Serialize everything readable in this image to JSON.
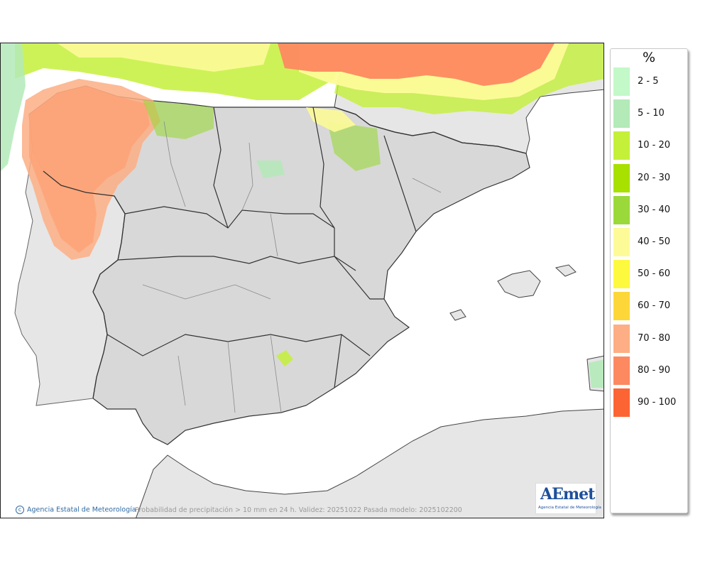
{
  "legend": {
    "title": "%",
    "bins": [
      {
        "label": "2 - 5",
        "color": "#c3f8c9"
      },
      {
        "label": "5 - 10",
        "color": "#b3eab8"
      },
      {
        "label": "10 - 20",
        "color": "#c4f03a"
      },
      {
        "label": "20 - 30",
        "color": "#a8e000"
      },
      {
        "label": "30 - 40",
        "color": "#9bd93a"
      },
      {
        "label": "40 - 50",
        "color": "#fdfb98"
      },
      {
        "label": "50 - 60",
        "color": "#fdf93f"
      },
      {
        "label": "60 - 70",
        "color": "#fdd73a"
      },
      {
        "label": "70 - 80",
        "color": "#fdae84"
      },
      {
        "label": "80 - 90",
        "color": "#fd8960"
      },
      {
        "label": "90 - 100",
        "color": "#fd6433"
      }
    ]
  },
  "footer": {
    "credit": "Agencia Estatal de Meteorología",
    "caption": "Probabilidad de precipitación > 10 mm en 24 h. Validez: 20251022 Pasada modelo: 2025102200"
  },
  "logo": {
    "word": "AEmet",
    "subtitle": "Agencia Estatal de Meteorología"
  },
  "colors": {
    "land": "#d8d8d8",
    "sea": "#ffffff",
    "outer_land": "#e6e6e6",
    "border": "#333333",
    "inner_border": "#8a8a8a"
  }
}
